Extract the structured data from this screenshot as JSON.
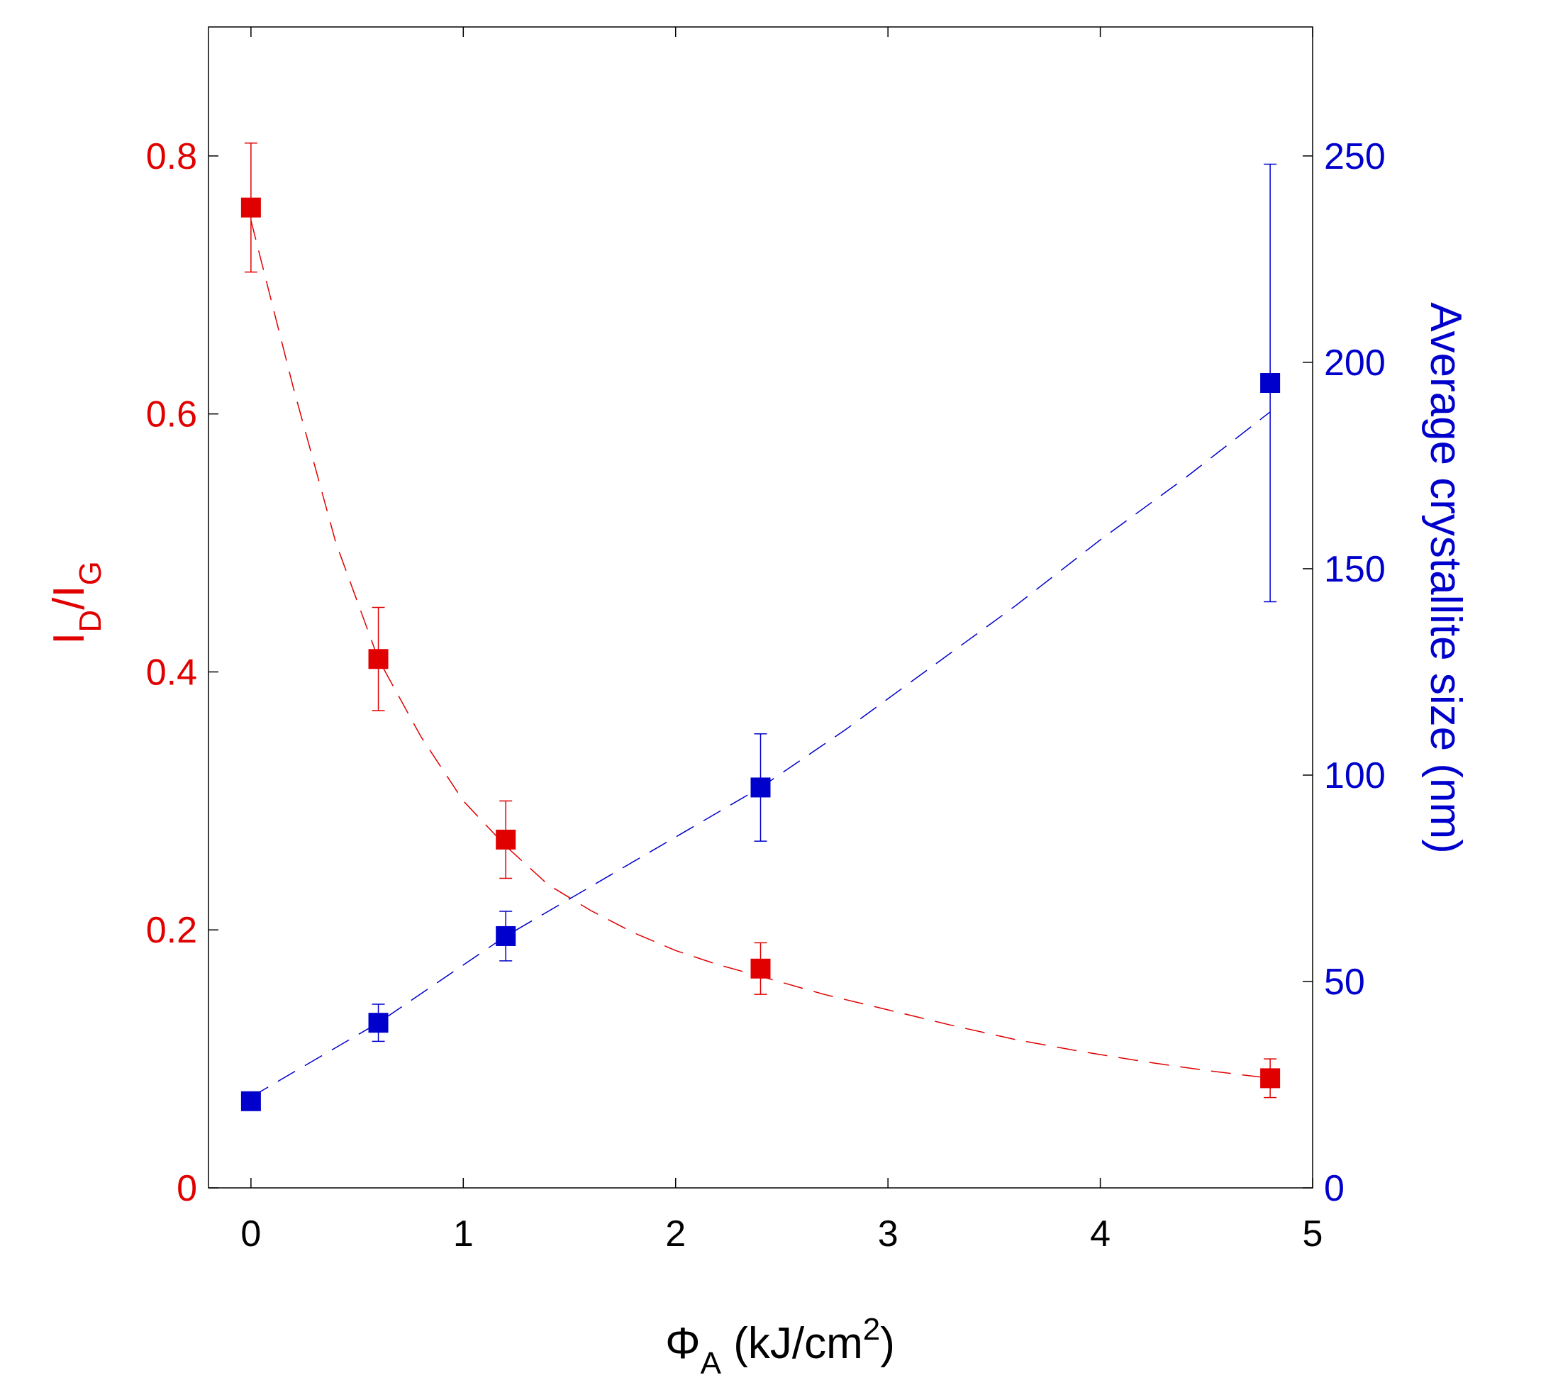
{
  "chart_data": {
    "type": "scatter",
    "title": "",
    "colors": {
      "left": "#e00000",
      "right": "#0000cc",
      "axis": "#000000"
    },
    "x_axis": {
      "label_symbol": "Φ",
      "label_sub": "A",
      "label_unit_pre": " (kJ/cm",
      "label_sup": "2",
      "label_unit_post": ")",
      "range": [
        -0.2,
        5
      ],
      "ticks": [
        "0",
        "1",
        "2",
        "3",
        "4",
        "5"
      ]
    },
    "y_left": {
      "label_I1": "I",
      "label_sub1": "D",
      "label_slash": "/I",
      "label_sub2": "G",
      "range": [
        0,
        0.9
      ],
      "ticks": [
        "0",
        "0.2",
        "0.4",
        "0.6",
        "0.8"
      ]
    },
    "y_right": {
      "label": "Average crystallite size (nm)",
      "range": [
        0,
        281.25
      ],
      "ticks": [
        "0",
        "50",
        "100",
        "150",
        "200",
        "250"
      ]
    },
    "series": [
      {
        "name": "ID/IG",
        "axis": "left",
        "color": "#e00000",
        "x": [
          0,
          0.6,
          1.2,
          2.4,
          4.8
        ],
        "y": [
          0.76,
          0.41,
          0.27,
          0.17,
          0.085
        ],
        "err": [
          0.05,
          0.04,
          0.03,
          0.02,
          0.015
        ]
      },
      {
        "name": "Average crystallite size",
        "axis": "right",
        "color": "#0000cc",
        "x": [
          0,
          0.6,
          1.2,
          2.4,
          4.8
        ],
        "y": [
          21,
          40,
          61,
          97,
          195
        ],
        "err": [
          0,
          4.5,
          6,
          13,
          53
        ]
      }
    ],
    "fits": [
      {
        "name": "ID/IG fit",
        "axis": "left",
        "color": "#e00000",
        "x": [
          0,
          0.2,
          0.4,
          0.6,
          0.8,
          1.0,
          1.2,
          1.4,
          1.6,
          1.8,
          2.0,
          2.2,
          2.4,
          2.7,
          3.0,
          3.3,
          3.6,
          3.9,
          4.2,
          4.5,
          4.8
        ],
        "y": [
          0.75,
          0.62,
          0.5,
          0.41,
          0.35,
          0.3,
          0.265,
          0.235,
          0.215,
          0.198,
          0.184,
          0.173,
          0.164,
          0.15,
          0.138,
          0.126,
          0.115,
          0.106,
          0.098,
          0.091,
          0.085
        ]
      },
      {
        "name": "Average crystallite size fit",
        "axis": "right",
        "color": "#0000cc",
        "x": [
          0,
          0.2,
          0.4,
          0.6,
          0.8,
          1.0,
          1.2,
          1.5,
          1.8,
          2.1,
          2.4,
          2.8,
          3.2,
          3.6,
          4.0,
          4.4,
          4.8
        ],
        "y": [
          22,
          28,
          34,
          40,
          47,
          54,
          61,
          70,
          79,
          88,
          97,
          111,
          126,
          141,
          157,
          172,
          188
        ]
      }
    ]
  }
}
